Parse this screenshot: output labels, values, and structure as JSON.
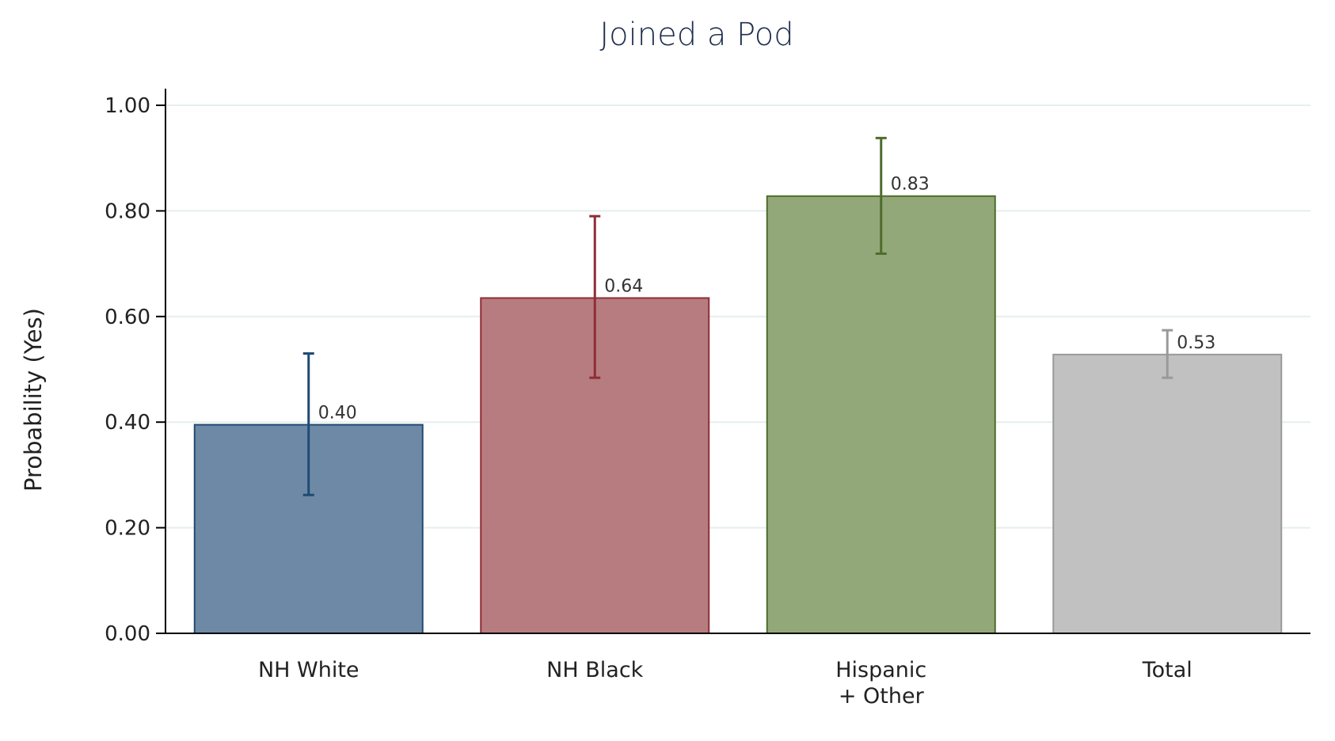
{
  "chart_data": {
    "type": "bar",
    "title": "Joined a Pod",
    "xlabel": "",
    "ylabel": "Probability (Yes)",
    "ylim": [
      0,
      1.0
    ],
    "yticks": [
      "0.00",
      "0.20",
      "0.40",
      "0.60",
      "0.80",
      "1.00"
    ],
    "ytick_values": [
      0,
      0.2,
      0.4,
      0.6,
      0.8,
      1.0
    ],
    "grid": true,
    "categories": [
      [
        "NH White"
      ],
      [
        "NH Black"
      ],
      [
        "Hispanic",
        "+ Other"
      ],
      [
        "Total"
      ]
    ],
    "values": [
      0.395,
      0.635,
      0.828,
      0.528
    ],
    "value_labels": [
      "0.40",
      "0.64",
      "0.83",
      "0.53"
    ],
    "error_lower": [
      0.262,
      0.484,
      0.719,
      0.484
    ],
    "error_upper": [
      0.53,
      0.79,
      0.938,
      0.574
    ],
    "colors": {
      "fill": [
        "#6e89a5",
        "#b77c80",
        "#93a878",
        "#c1c1c1"
      ],
      "stroke": [
        "#1f4a72",
        "#8e2e37",
        "#4f6b2d",
        "#9a9a9a"
      ],
      "gridline": "#e6efee",
      "axis": "#000000"
    }
  }
}
